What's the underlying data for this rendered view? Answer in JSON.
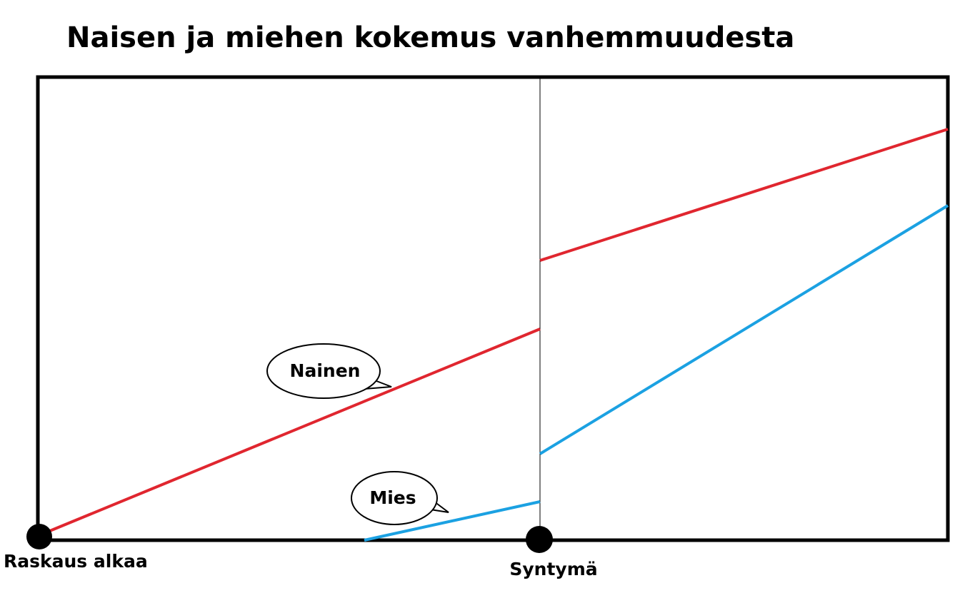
{
  "title": "Naisen ja miehen kokemus vanhemmuudesta",
  "callouts": {
    "woman": "Nainen",
    "man": "Mies"
  },
  "axis_labels": {
    "start": "Raskaus alkaa",
    "birth": "Syntymä"
  }
}
